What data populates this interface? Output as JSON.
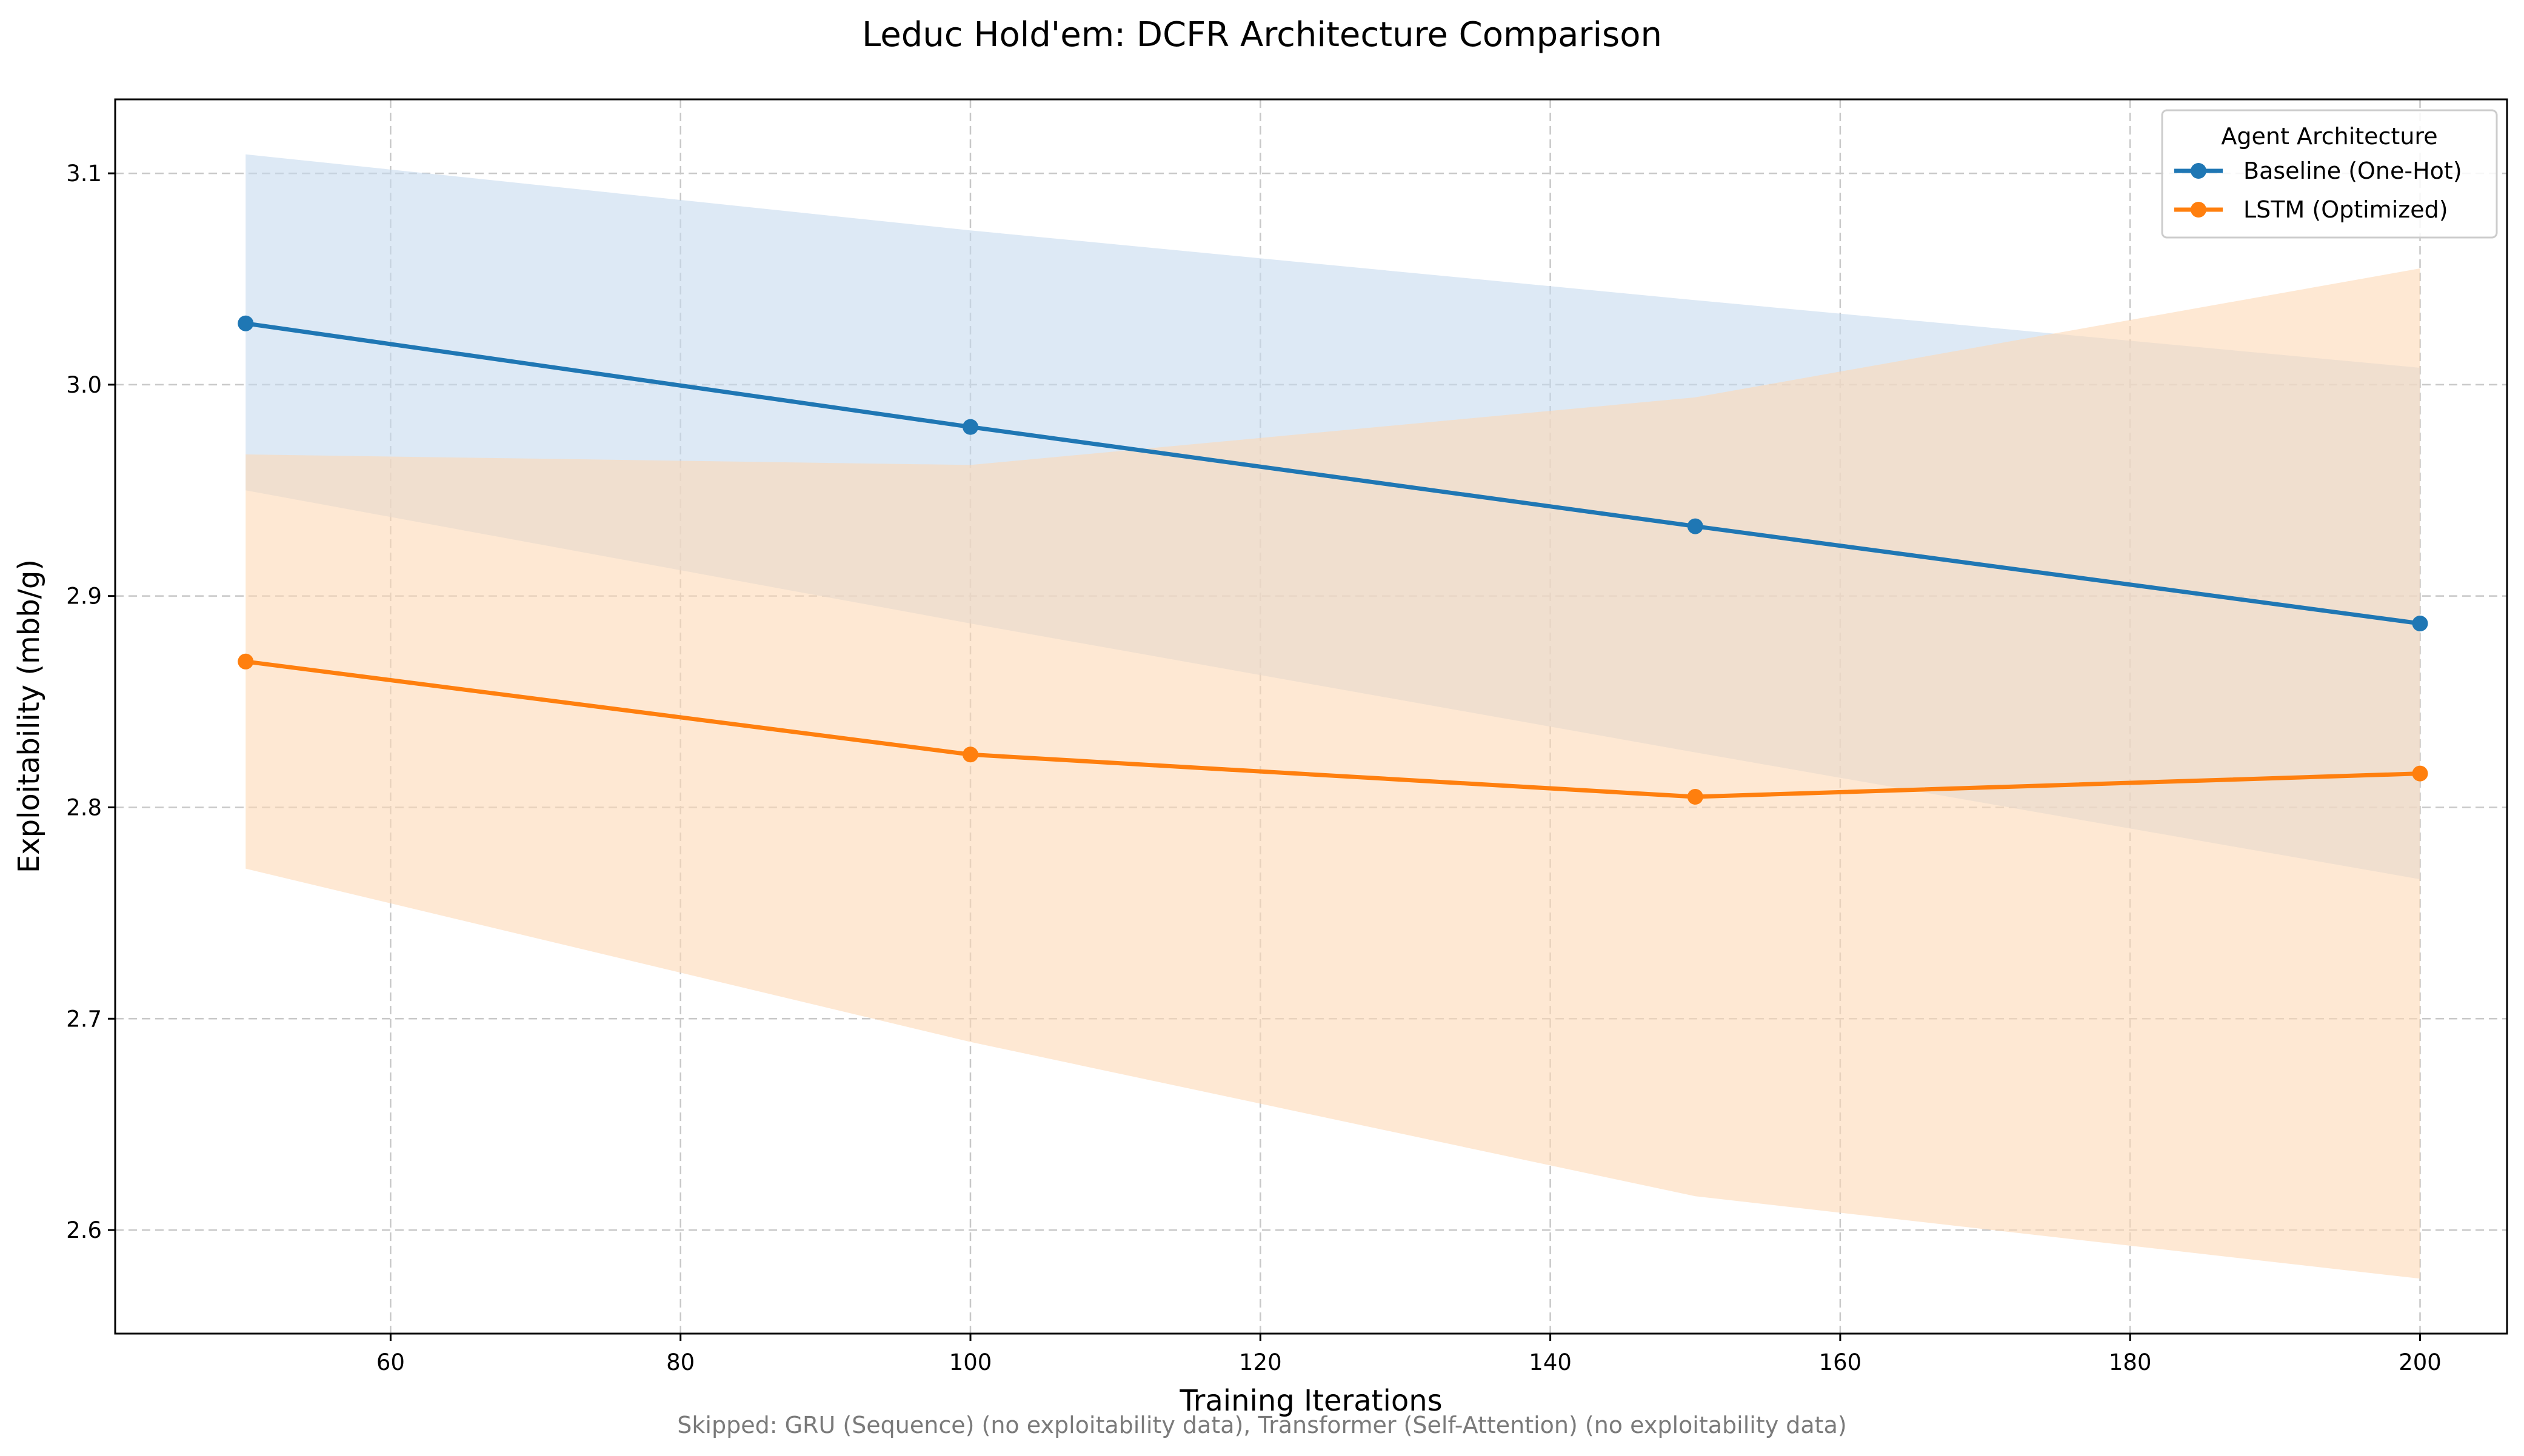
{
  "chart_data": {
    "type": "line",
    "title": "Leduc Hold'em: DCFR Architecture Comparison",
    "xlabel": "Training Iterations",
    "ylabel": "Exploitability (mbb/g)",
    "xlim": [
      41,
      206
    ],
    "ylim": [
      2.551,
      3.135
    ],
    "x_ticks": [
      60,
      80,
      100,
      120,
      140,
      160,
      180,
      200
    ],
    "y_ticks": [
      2.6,
      2.7,
      2.8,
      2.9,
      3.0,
      3.1
    ],
    "x_tick_labels": [
      "60",
      "80",
      "100",
      "120",
      "140",
      "160",
      "180",
      "200"
    ],
    "y_tick_labels": [
      "2.6",
      "2.7",
      "2.8",
      "2.9",
      "3.0",
      "3.1"
    ],
    "grid": true,
    "legend": {
      "title": "Agent Architecture",
      "placement": "top-right"
    },
    "x": [
      50,
      100,
      150,
      200
    ],
    "series": [
      {
        "name": "Baseline (One-Hot)",
        "color": "#1f77b4",
        "band_color": "#c6dbef",
        "values": [
          3.029,
          2.98,
          2.933,
          2.887
        ],
        "band_upper": [
          3.109,
          3.073,
          3.04,
          3.008
        ],
        "band_lower": [
          2.95,
          2.887,
          2.826,
          2.766
        ]
      },
      {
        "name": "LSTM (Optimized)",
        "color": "#ff7f0e",
        "band_color": "#fdd9b5",
        "values": [
          2.869,
          2.825,
          2.805,
          2.816
        ],
        "band_upper": [
          2.967,
          2.962,
          2.994,
          3.055
        ],
        "band_lower": [
          2.771,
          2.689,
          2.616,
          2.577
        ]
      }
    ],
    "footnote": "Skipped: GRU (Sequence) (no exploitability data), Transformer (Self-Attention) (no exploitability data)"
  }
}
